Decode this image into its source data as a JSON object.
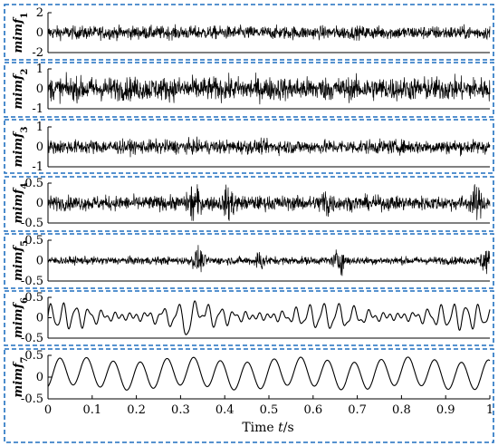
{
  "chart_data": {
    "type": "line",
    "x_axis": {
      "label_prefix": "Time ",
      "label_var": "t",
      "label_suffix": "/s",
      "range": [
        0,
        1
      ],
      "ticks": [
        0,
        0.1,
        0.2,
        0.3,
        0.4,
        0.5,
        0.6,
        0.7,
        0.8,
        0.9,
        1
      ]
    },
    "panels": [
      {
        "name": "mimf",
        "subscript": "1",
        "ylim": [
          -2,
          2
        ],
        "yticks": [
          -2,
          0,
          2
        ],
        "noise": 0.62,
        "burst": []
      },
      {
        "name": "mimf",
        "subscript": "2",
        "ylim": [
          -1,
          1
        ],
        "yticks": [
          -1,
          0,
          1
        ],
        "noise": 0.55,
        "burst": []
      },
      {
        "name": "mimf",
        "subscript": "3",
        "ylim": [
          -1,
          1
        ],
        "yticks": [
          -1,
          0,
          1
        ],
        "noise": 0.33,
        "burst": []
      },
      {
        "name": "mimf",
        "subscript": "4",
        "ylim": [
          -0.5,
          0.5
        ],
        "yticks": [
          -0.5,
          0,
          0.5
        ],
        "noise": 0.17,
        "burst": [
          {
            "t": 0.33,
            "amp": 0.38
          },
          {
            "t": 0.41,
            "amp": 0.3
          },
          {
            "t": 0.63,
            "amp": 0.3
          },
          {
            "t": 0.97,
            "amp": 0.27
          }
        ]
      },
      {
        "name": "mimf",
        "subscript": "5",
        "ylim": [
          -0.5,
          0.5
        ],
        "yticks": [
          -0.5,
          0,
          0.5
        ],
        "noise": 0.09,
        "burst": [
          {
            "t": 0.34,
            "amp": 0.22
          },
          {
            "t": 0.48,
            "amp": 0.18
          },
          {
            "t": 0.66,
            "amp": 0.25
          },
          {
            "t": 0.99,
            "amp": 0.24
          }
        ]
      },
      {
        "name": "mimf",
        "subscript": "6",
        "ylim": [
          -0.5,
          0.5
        ],
        "yticks": [
          -0.5,
          0,
          0.5
        ],
        "noise": 0.0,
        "burst": []
      },
      {
        "name": "mimf",
        "subscript": "7",
        "ylim": [
          -0.5,
          0.5
        ],
        "yticks": [
          -0.5,
          0,
          0.5
        ],
        "noise": 0.0,
        "burst": []
      }
    ],
    "tonal": {
      "mimf6": {
        "freq": 32,
        "amp": 0.28,
        "offset": 0.03,
        "extreme_t": 0.33
      },
      "mimf7": {
        "freq": 16.5,
        "amp": 0.32,
        "offset": 0.08
      }
    },
    "grid": false,
    "panel_border": "dashed blue"
  },
  "colors": {
    "line": "#000000",
    "panel_border": "#1f6fbf",
    "axes": "#000000"
  }
}
